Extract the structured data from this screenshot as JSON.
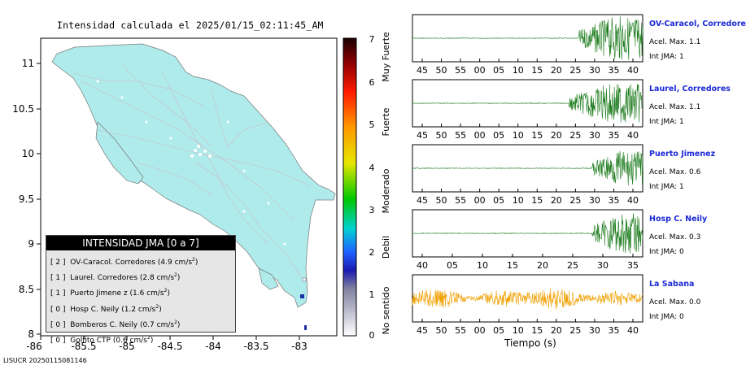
{
  "map": {
    "title": "Intensidad calculada el 2025/01/15_02:11:45_AM",
    "x_ticks": [
      "-86",
      "-85.5",
      "-85",
      "-84.5",
      "-84",
      "-83.5",
      "-83"
    ],
    "y_ticks": [
      "11",
      "10.5",
      "10",
      "9.5",
      "9",
      "8.5",
      "8"
    ],
    "footer": "LISUCR 20250115081146"
  },
  "legend": {
    "title": "INTENSIDAD JMA [0 a 7]",
    "entries": [
      {
        "level": "[ 2 ]",
        "name": "OV-Caracol. Corredores",
        "value": "(4.9 cm/s",
        "sup": "2",
        "close": ")"
      },
      {
        "level": "[ 1 ]",
        "name": "Laurel. Corredores",
        "value": "(2.8 cm/s",
        "sup": "2",
        "close": ")"
      },
      {
        "level": "[ 1 ]",
        "name": "Puerto Jimene z",
        "value": "(1.6 cm/s",
        "sup": "2",
        "close": ")"
      },
      {
        "level": "[ 0 ]",
        "name": "Hosp C. Neily",
        "value": "(1.2 cm/s",
        "sup": "2",
        "close": ")"
      },
      {
        "level": "[ 0 ]",
        "name": "Bomberos C. Neily",
        "value": "(0.7 cm/s",
        "sup": "2",
        "close": ")"
      },
      {
        "level": "[ 0 ]",
        "name": "Golfito CTP",
        "value": "(0.6 cm/s",
        "sup": "2",
        "close": ")"
      }
    ]
  },
  "colorbar": {
    "ticks": [
      "7",
      "6",
      "5",
      "4",
      "3",
      "2",
      "1",
      "0"
    ],
    "labels": [
      "Muy Fuerte",
      "Fuerte",
      "Moderado",
      "Debil",
      "No sentido"
    ]
  },
  "stations": [
    {
      "name": "OV-Caracol, Corredore",
      "acel": "Acel. Max. 1.1",
      "jma": "Int JMA: 1",
      "ticks": [
        "45",
        "50",
        "55",
        "00",
        "05",
        "10",
        "15",
        "20",
        "25",
        "30",
        "35",
        "40"
      ],
      "onset": 0.72,
      "amp": 1.0,
      "color": "#1a7a1a"
    },
    {
      "name": "Laurel, Corredores",
      "acel": "Acel. Max. 1.1",
      "jma": "Int JMA: 1",
      "ticks": [
        "45",
        "50",
        "55",
        "00",
        "05",
        "10",
        "15",
        "20",
        "25",
        "30",
        "35",
        "40"
      ],
      "onset": 0.68,
      "amp": 0.9,
      "color": "#1a7a1a"
    },
    {
      "name": "Puerto Jimenez",
      "acel": "Acel. Max. 0.6",
      "jma": "Int JMA: 1",
      "ticks": [
        "45",
        "50",
        "55",
        "00",
        "05",
        "10",
        "15",
        "20",
        "25",
        "30",
        "35",
        "40"
      ],
      "onset": 0.78,
      "amp": 0.8,
      "color": "#1a7a1a"
    },
    {
      "name": "Hosp C. Neily",
      "acel": "Acel. Max. 0.3",
      "jma": "Int JMA: 0",
      "ticks": [
        "40",
        "05",
        "10",
        "15",
        "20",
        "25",
        "30",
        "35"
      ],
      "onset": 0.78,
      "amp": 0.95,
      "color": "#1a7a1a"
    },
    {
      "name": "La Sabana",
      "acel": "Acel. Max. 0.0",
      "jma": "Int JMA: 0",
      "ticks": [
        "45",
        "50",
        "55",
        "00",
        "05",
        "10",
        "15",
        "20",
        "25",
        "30",
        "35",
        "40"
      ],
      "onset": 0.0,
      "amp": 0.55,
      "color": "#f0a000"
    }
  ],
  "xaxis_label": "Tiempo (s)"
}
